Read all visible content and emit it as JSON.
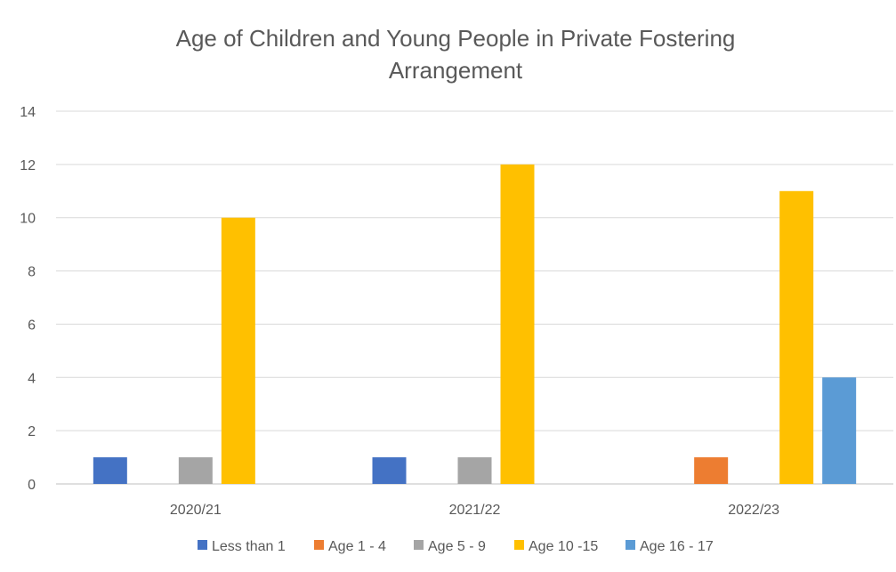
{
  "chart_data": {
    "type": "bar",
    "title": "Age of Children and Young People in Private Fostering Arrangement",
    "title_lines": [
      "Age of Children and Young People in Private Fostering",
      "Arrangement"
    ],
    "xlabel": "",
    "ylabel": "",
    "ylim": [
      0,
      14
    ],
    "yticks": [
      0,
      2,
      4,
      6,
      8,
      10,
      12,
      14
    ],
    "grid": true,
    "legend_position": "bottom",
    "categories": [
      "2020/21",
      "2021/22",
      "2022/23"
    ],
    "series": [
      {
        "name": "Less than 1",
        "color": "#4472C4",
        "values": [
          1,
          1,
          0
        ]
      },
      {
        "name": "Age 1 - 4",
        "color": "#ED7D31",
        "values": [
          0,
          0,
          1
        ]
      },
      {
        "name": "Age 5 - 9",
        "color": "#A5A5A5",
        "values": [
          1,
          1,
          0
        ]
      },
      {
        "name": "Age 10 -15",
        "color": "#FFC000",
        "values": [
          10,
          12,
          11
        ]
      },
      {
        "name": "Age 16 - 17",
        "color": "#5B9BD5",
        "values": [
          0,
          0,
          4
        ]
      }
    ]
  }
}
